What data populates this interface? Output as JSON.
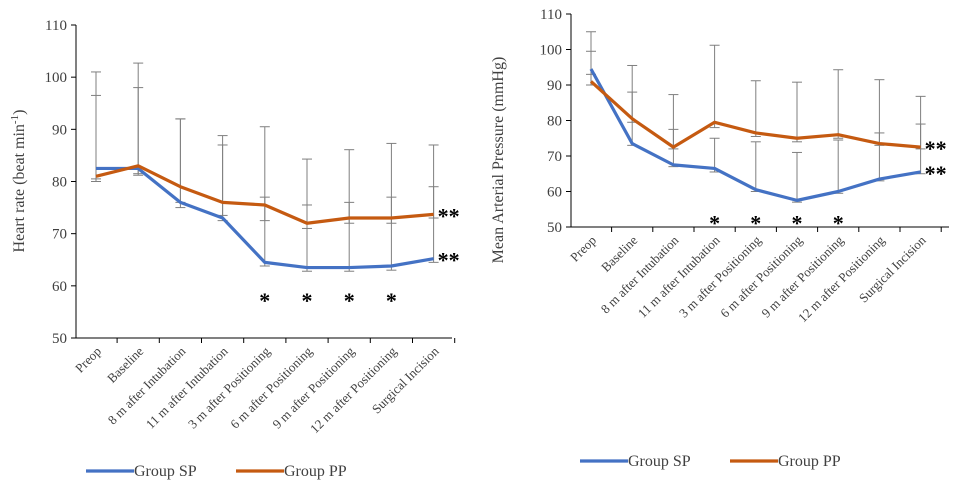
{
  "colors": {
    "group_sp": "#4472C4",
    "group_pp": "#C55A11",
    "error_bar": "#7F7F7F",
    "axis": "#000000"
  },
  "chart_data": [
    {
      "type": "line",
      "ylabel": "Heart rate (beat min",
      "ylabel_sup": "-1",
      "ylabel_tail": ")",
      "ylim": [
        50,
        110
      ],
      "yticks": [
        50,
        60,
        70,
        80,
        90,
        100,
        110
      ],
      "grid": false,
      "legend": "bottom",
      "categories": [
        "Preop",
        "Baseline",
        "8 m after Intubation",
        "11 m after Intubation",
        "3 m after Positioning",
        "6 m after Positioning",
        "9 m after Positioning",
        "12 m after Positioning",
        "Surgical Incision"
      ],
      "series": [
        {
          "name": "Group SP",
          "color_key": "group_sp",
          "values": [
            82.5,
            82.5,
            76,
            73,
            64.5,
            63.5,
            63.5,
            63.8,
            65.2
          ],
          "err_hi": [
            101,
            98,
            92,
            87,
            77,
            75.5,
            76,
            77,
            79
          ],
          "err_lo": [
            80.5,
            81.2,
            75,
            72.5,
            63.8,
            62.8,
            62.8,
            63,
            64.5
          ]
        },
        {
          "name": "Group PP",
          "color_key": "group_pp",
          "values": [
            81,
            83,
            79,
            76,
            75.5,
            72,
            73,
            73,
            73.7
          ],
          "err_hi": [
            96.5,
            102.7,
            92,
            88.8,
            90.5,
            84.3,
            86.1,
            87.3,
            87
          ],
          "err_lo": [
            80,
            81.5,
            76,
            73.5,
            72.5,
            71,
            72,
            72,
            73
          ]
        }
      ],
      "annotations": [
        {
          "text": "*",
          "category_index": 4,
          "y": 57.5
        },
        {
          "text": "*",
          "category_index": 5,
          "y": 57.5
        },
        {
          "text": "*",
          "category_index": 6,
          "y": 57.5
        },
        {
          "text": "*",
          "category_index": 7,
          "y": 57.5
        },
        {
          "text": "**",
          "category_index": 8,
          "y": 73.7,
          "side": "right"
        },
        {
          "text": "**",
          "category_index": 8,
          "y": 65.2,
          "side": "right"
        }
      ]
    },
    {
      "type": "line",
      "ylabel": "Mean Arterial Pressure (mmHg)",
      "ylabel_sup": "",
      "ylabel_tail": "",
      "ylim": [
        50,
        110
      ],
      "yticks": [
        50,
        60,
        70,
        80,
        90,
        100,
        110
      ],
      "grid": false,
      "legend": "bottom",
      "categories": [
        "Preop",
        "Baseline",
        "8 m after Intubation",
        "11 m after Intubation",
        "3 m after Positioning",
        "6 m after Positioning",
        "9 m after Positioning",
        "12 m after Positioning",
        "Surgical Incision"
      ],
      "series": [
        {
          "name": "Group SP",
          "color_key": "group_sp",
          "values": [
            94.5,
            73.5,
            67.5,
            66.5,
            60.5,
            57.5,
            60,
            63.5,
            65.5
          ],
          "err_hi": [
            105,
            88,
            77.5,
            75,
            74,
            71,
            74.5,
            76.5,
            79
          ],
          "err_lo": [
            93,
            73,
            67,
            65.5,
            60,
            57,
            59.5,
            63,
            65
          ]
        },
        {
          "name": "Group PP",
          "color_key": "group_pp",
          "values": [
            91,
            80.5,
            72.5,
            79.5,
            76.5,
            75,
            76,
            73.5,
            72.5
          ],
          "err_hi": [
            99.5,
            95.5,
            87.3,
            101.2,
            91.2,
            90.8,
            94.3,
            91.5,
            86.8
          ],
          "err_lo": [
            90,
            79.5,
            72,
            78,
            75.5,
            74,
            75,
            73,
            72
          ]
        }
      ],
      "annotations": [
        {
          "text": "*",
          "category_index": 3,
          "y": 51.5
        },
        {
          "text": "*",
          "category_index": 4,
          "y": 51.5
        },
        {
          "text": "*",
          "category_index": 5,
          "y": 51.5
        },
        {
          "text": "*",
          "category_index": 6,
          "y": 51.5
        },
        {
          "text": "**",
          "category_index": 8,
          "y": 72.5,
          "side": "right"
        },
        {
          "text": "**",
          "category_index": 8,
          "y": 65.5,
          "side": "right"
        }
      ]
    }
  ]
}
